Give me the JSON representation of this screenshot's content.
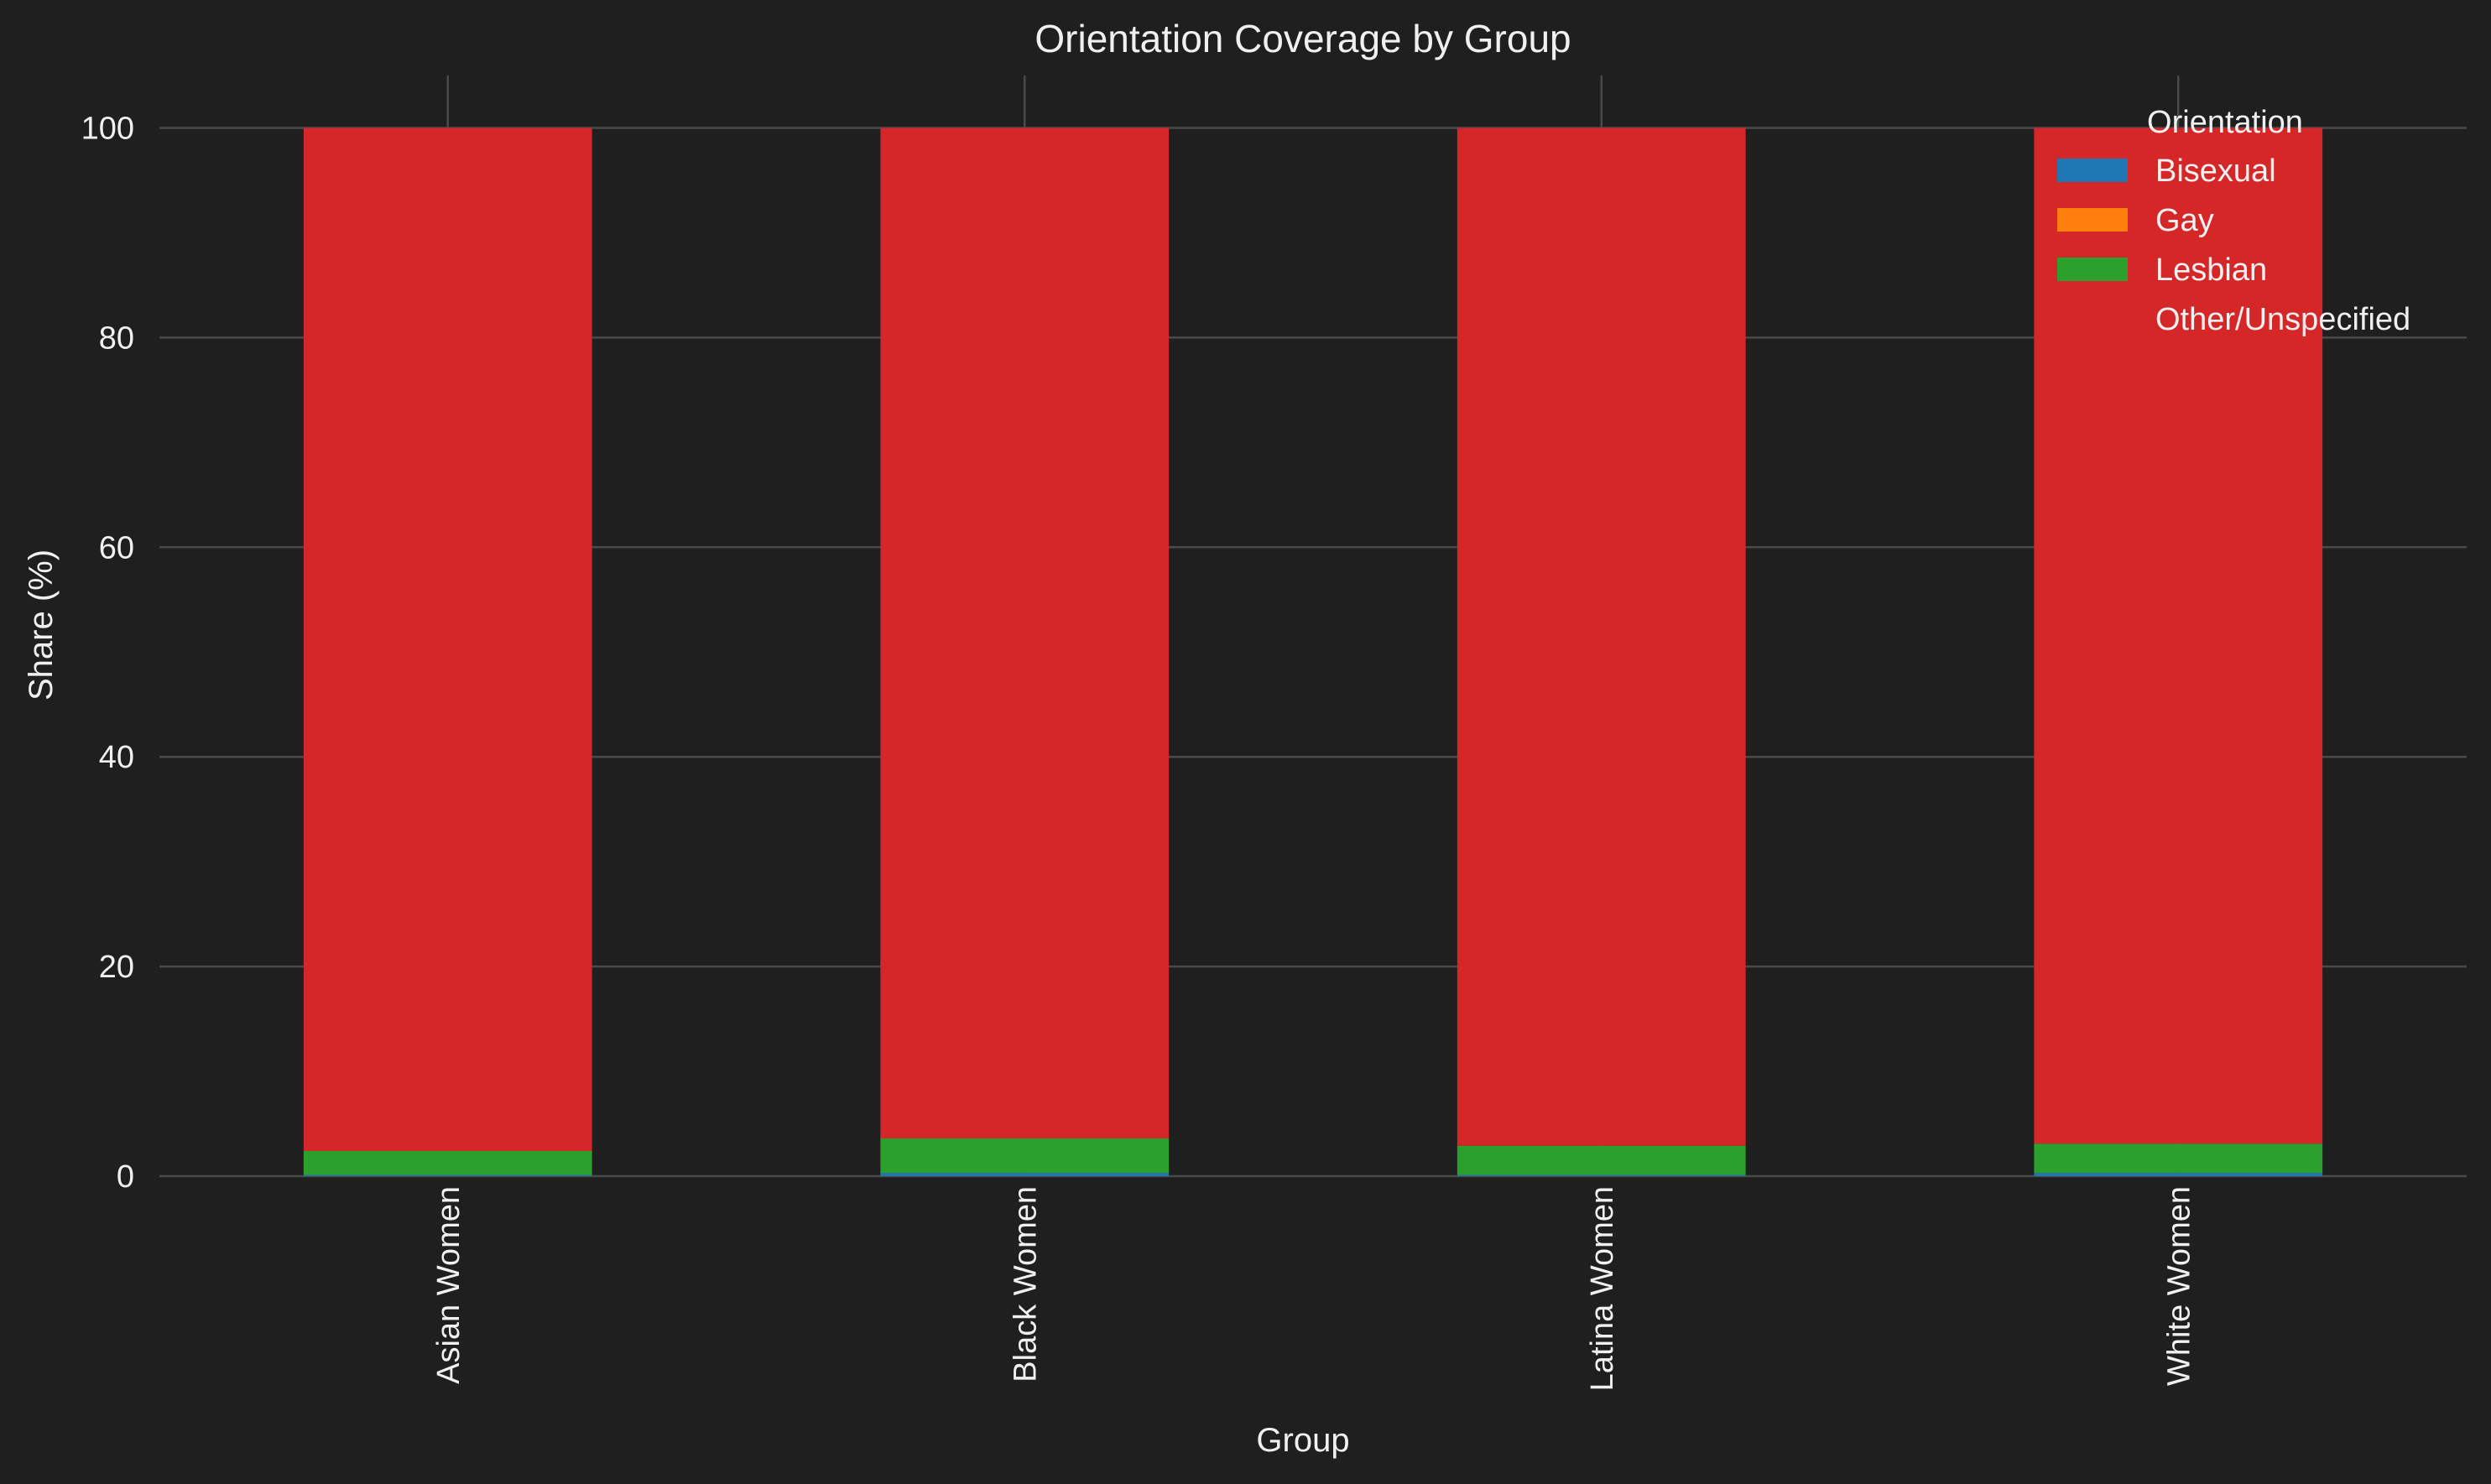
{
  "chart_data": {
    "type": "bar",
    "stacked": true,
    "title": "Orientation Coverage by Group",
    "xlabel": "Group",
    "ylabel": "Share (%)",
    "ylim": [
      0,
      105
    ],
    "yticks": [
      0,
      20,
      40,
      60,
      80,
      100
    ],
    "grid": true,
    "categories": [
      "Asian Women",
      "Black Women",
      "Latina Women",
      "White Women"
    ],
    "series": [
      {
        "name": "Bisexual",
        "color": "#1f77b4",
        "values": [
          0.1,
          0.3,
          0.1,
          0.3
        ]
      },
      {
        "name": "Gay",
        "color": "#ff7f0e",
        "values": [
          0.0,
          0.0,
          0.0,
          0.0
        ]
      },
      {
        "name": "Lesbian",
        "color": "#2ca02c",
        "values": [
          2.3,
          3.3,
          2.8,
          2.8
        ]
      },
      {
        "name": "Other/Unspecified",
        "color": "#d62728",
        "values": [
          97.6,
          96.4,
          97.1,
          96.9
        ]
      }
    ],
    "legend": {
      "title": "Orientation",
      "placement": "top-right"
    }
  },
  "colors": {
    "background": "#1f1f1f",
    "text": "#f0f0f0",
    "grid": "#4a4a4a"
  }
}
